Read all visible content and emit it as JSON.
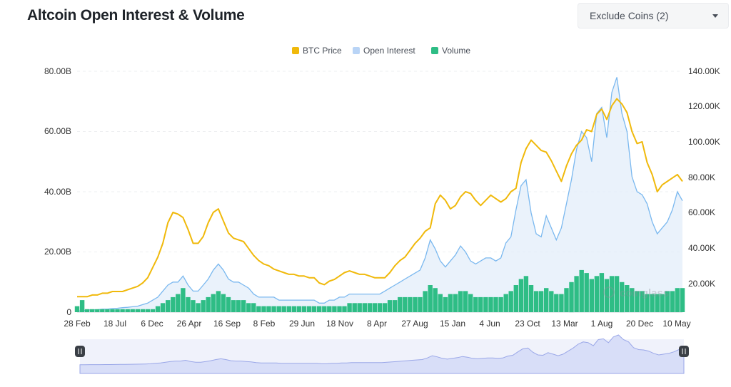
{
  "header": {
    "title": "Altcoin Open Interest & Volume",
    "filter_label": "Exclude Coins (2)"
  },
  "watermark": "coinglass",
  "colors": {
    "btc_price": "#f0b90b",
    "open_interest": "#7ab8ef",
    "open_interest_fill": "#e3eefa",
    "volume": "#2ebd85",
    "navigator_fill": "#d8def8",
    "navigator_line": "#9aa7e8"
  },
  "chart_data": {
    "type": "line",
    "title": "Altcoin Open Interest & Volume",
    "legend": [
      "BTC Price",
      "Open Interest",
      "Volume"
    ],
    "legend_position": "top-center",
    "x_tick_labels": [
      "28 Feb",
      "18 Jul",
      "6 Dec",
      "26 Apr",
      "16 Sep",
      "8 Feb",
      "29 Jun",
      "18 Nov",
      "8 Apr",
      "27 Aug",
      "15 Jan",
      "4 Jun",
      "23 Oct",
      "13 Mar",
      "1 Aug",
      "20 Dec",
      "10 May"
    ],
    "y_left": {
      "ticks": [
        "0",
        "20.00B",
        "40.00B",
        "60.00B",
        "80.00B"
      ],
      "range": [
        0,
        80
      ],
      "unit": "B USD"
    },
    "y_right": {
      "ticks": [
        "20.00K",
        "40.00K",
        "60.00K",
        "80.00K",
        "100.00K",
        "120.00K",
        "140.00K"
      ],
      "range": [
        0,
        140
      ],
      "unit": "K USD"
    },
    "grid": true,
    "series": [
      {
        "name": "BTC Price",
        "axis": "right",
        "values": [
          9,
          9,
          9,
          10,
          10,
          11,
          11,
          12,
          12,
          12,
          13,
          14,
          15,
          17,
          20,
          26,
          32,
          40,
          52,
          58,
          57,
          55,
          48,
          40,
          40,
          44,
          52,
          58,
          60,
          53,
          46,
          43,
          42,
          41,
          37,
          33,
          30,
          28,
          27,
          25,
          24,
          23,
          22,
          22,
          21,
          21,
          20,
          20,
          17,
          16,
          18,
          19,
          21,
          23,
          24,
          23,
          22,
          22,
          21,
          20,
          20,
          20,
          23,
          27,
          30,
          32,
          36,
          40,
          43,
          47,
          49,
          63,
          68,
          65,
          60,
          62,
          67,
          70,
          69,
          65,
          62,
          65,
          68,
          66,
          64,
          66,
          70,
          72,
          87,
          95,
          100,
          97,
          94,
          93,
          88,
          82,
          76,
          85,
          92,
          97,
          100,
          106,
          105,
          115,
          118,
          112,
          120,
          124,
          121,
          116,
          105,
          98,
          99,
          87,
          80,
          70,
          74,
          76,
          78,
          80,
          76
        ]
      },
      {
        "name": "Open Interest",
        "axis": "left",
        "values": [
          0.3,
          0.5,
          0.7,
          0.8,
          0.8,
          1.0,
          1.0,
          1.2,
          1.3,
          1.5,
          1.6,
          1.8,
          2,
          2.5,
          3,
          4,
          5,
          7,
          9,
          10,
          10,
          12,
          9,
          7,
          7,
          9,
          11,
          14,
          16,
          14,
          11,
          10,
          10,
          9,
          8,
          6,
          5,
          5,
          5,
          5,
          4,
          4,
          4,
          4,
          4,
          4,
          4,
          4,
          3,
          3,
          4,
          4,
          5,
          5,
          6,
          6,
          6,
          6,
          6,
          6,
          6,
          7,
          8,
          9,
          10,
          11,
          12,
          13,
          14,
          18,
          24,
          21,
          17,
          15,
          17,
          19,
          22,
          20,
          17,
          16,
          17,
          18,
          18,
          17,
          18,
          23,
          25,
          34,
          42,
          44,
          33,
          26,
          25,
          32,
          28,
          24,
          28,
          36,
          44,
          54,
          60,
          58,
          50,
          66,
          68,
          58,
          73,
          78,
          66,
          60,
          45,
          40,
          39,
          36,
          30,
          26,
          28,
          30,
          34,
          40,
          37
        ]
      },
      {
        "name": "Volume",
        "axis": "left",
        "values": [
          2,
          4,
          1,
          1,
          1,
          1,
          1,
          1,
          1,
          1,
          1,
          1,
          1,
          1,
          1,
          1,
          2,
          3,
          4,
          5,
          6,
          8,
          5,
          4,
          3,
          4,
          5,
          6,
          7,
          6,
          5,
          4,
          4,
          4,
          3,
          3,
          2,
          2,
          2,
          2,
          2,
          2,
          2,
          2,
          2,
          2,
          2,
          2,
          2,
          2,
          2,
          2,
          2,
          2,
          3,
          3,
          3,
          3,
          3,
          3,
          3,
          3,
          4,
          4,
          5,
          5,
          5,
          5,
          5,
          7,
          9,
          8,
          6,
          5,
          6,
          6,
          7,
          7,
          6,
          5,
          5,
          5,
          5,
          5,
          5,
          6,
          7,
          9,
          11,
          12,
          9,
          7,
          7,
          8,
          7,
          6,
          6,
          8,
          10,
          12,
          14,
          13,
          11,
          12,
          13,
          11,
          12,
          12,
          10,
          9,
          8,
          7,
          7,
          6,
          6,
          6,
          6,
          7,
          7,
          8,
          8
        ]
      }
    ],
    "navigator": {
      "selection": "full-range",
      "values": [
        0.3,
        0.5,
        0.7,
        0.8,
        0.8,
        1.0,
        1.0,
        1.2,
        1.3,
        1.5,
        1.6,
        1.8,
        2,
        2.5,
        3,
        4,
        5,
        7,
        9,
        10,
        10,
        12,
        9,
        7,
        7,
        9,
        11,
        14,
        16,
        14,
        11,
        10,
        10,
        9,
        8,
        6,
        5,
        5,
        5,
        5,
        4,
        4,
        4,
        4,
        4,
        4,
        4,
        4,
        3,
        3,
        4,
        4,
        5,
        5,
        6,
        6,
        6,
        6,
        6,
        6,
        6,
        7,
        8,
        9,
        10,
        11,
        12,
        13,
        14,
        18,
        24,
        21,
        17,
        15,
        17,
        19,
        22,
        20,
        17,
        16,
        17,
        18,
        18,
        17,
        18,
        23,
        25,
        34,
        42,
        44,
        33,
        26,
        25,
        32,
        28,
        24,
        28,
        36,
        44,
        54,
        60,
        58,
        50,
        66,
        68,
        58,
        73,
        78,
        66,
        60,
        45,
        40,
        39,
        36,
        30,
        26,
        28,
        30,
        34,
        40,
        37
      ]
    }
  }
}
